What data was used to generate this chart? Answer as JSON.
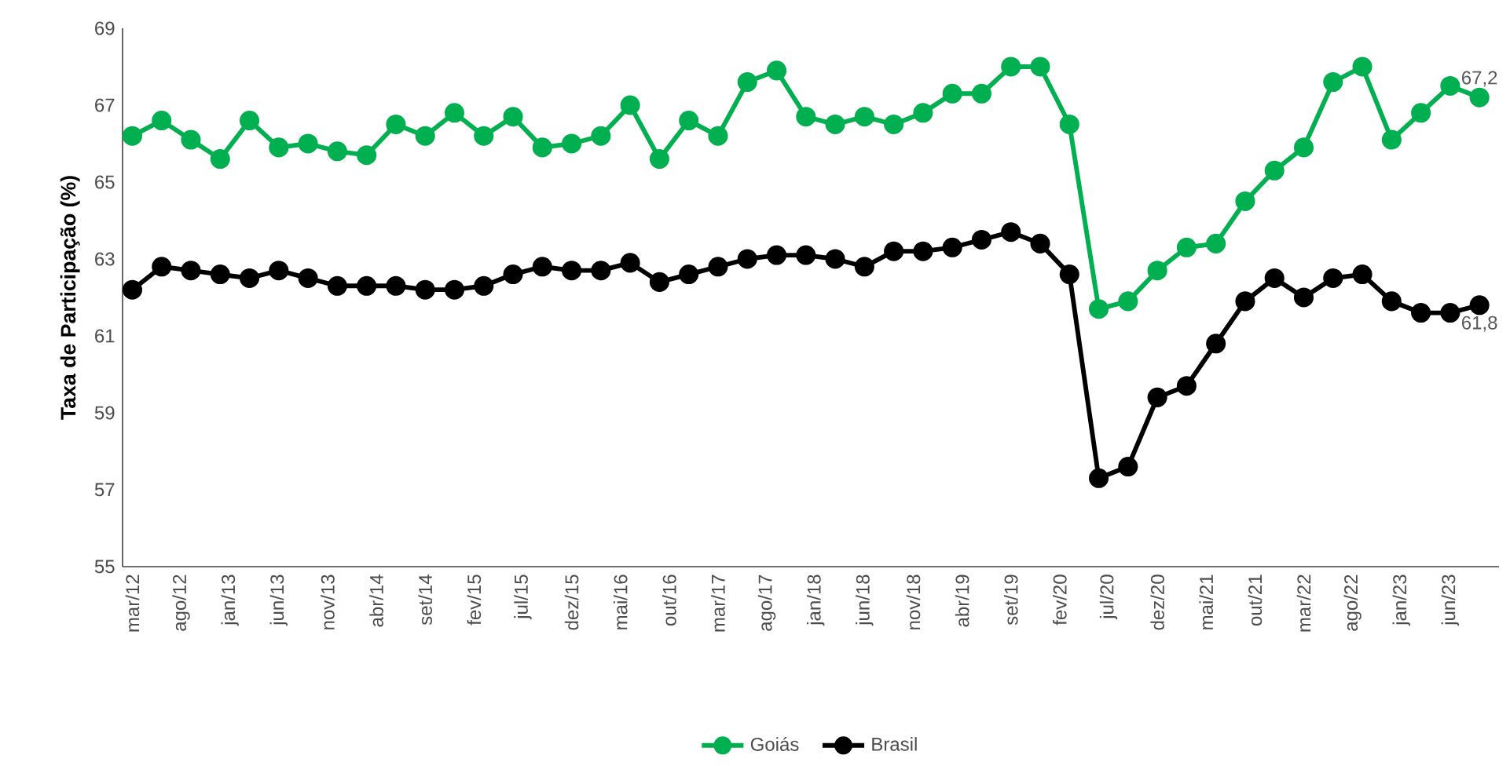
{
  "chart_data": {
    "type": "line",
    "ylabel": "Taxa de Participação (%)",
    "x": [
      "2012-03",
      "2012-06",
      "2012-09",
      "2012-12",
      "2013-03",
      "2013-06",
      "2013-09",
      "2013-12",
      "2014-03",
      "2014-06",
      "2014-09",
      "2014-12",
      "2015-03",
      "2015-06",
      "2015-09",
      "2015-12",
      "2016-03",
      "2016-06",
      "2016-09",
      "2016-12",
      "2017-03",
      "2017-06",
      "2017-09",
      "2017-12",
      "2018-03",
      "2018-06",
      "2018-09",
      "2018-12",
      "2019-03",
      "2019-06",
      "2019-09",
      "2019-12",
      "2020-03",
      "2020-06",
      "2020-09",
      "2020-12",
      "2021-03",
      "2021-06",
      "2021-09",
      "2021-12",
      "2022-03",
      "2022-06",
      "2022-09",
      "2022-12",
      "2023-03",
      "2023-06",
      "2023-09"
    ],
    "series": [
      {
        "name": "Goiás",
        "color": "#00b050",
        "values": [
          66.2,
          66.6,
          66.1,
          65.6,
          66.6,
          65.9,
          66.0,
          65.8,
          65.7,
          66.5,
          66.2,
          66.8,
          66.2,
          66.7,
          65.9,
          66.0,
          66.2,
          67.0,
          65.6,
          66.6,
          66.2,
          67.6,
          67.9,
          66.7,
          66.5,
          66.7,
          66.5,
          66.8,
          67.3,
          67.3,
          68.0,
          68.0,
          66.5,
          61.7,
          61.9,
          62.7,
          63.3,
          63.4,
          64.5,
          65.3,
          65.9,
          67.6,
          68.0,
          66.1,
          66.8,
          67.5,
          67.2
        ],
        "value_labels": [
          null,
          null,
          null,
          null,
          null,
          null,
          null,
          null,
          null,
          null,
          null,
          null,
          null,
          null,
          null,
          null,
          null,
          null,
          null,
          null,
          null,
          null,
          null,
          null,
          null,
          null,
          null,
          null,
          null,
          null,
          null,
          null,
          null,
          null,
          null,
          null,
          null,
          null,
          null,
          null,
          null,
          null,
          null,
          null,
          null,
          null,
          "67,2"
        ]
      },
      {
        "name": "Brasil",
        "color": "#000000",
        "values": [
          62.2,
          62.8,
          62.7,
          62.6,
          62.5,
          62.7,
          62.5,
          62.3,
          62.3,
          62.3,
          62.2,
          62.2,
          62.3,
          62.6,
          62.8,
          62.7,
          62.7,
          62.9,
          62.4,
          62.6,
          62.8,
          63.0,
          63.1,
          63.1,
          63.0,
          62.8,
          63.2,
          63.2,
          63.3,
          63.5,
          63.7,
          63.4,
          62.6,
          57.3,
          57.6,
          59.4,
          59.7,
          60.8,
          61.9,
          62.5,
          62.0,
          62.5,
          62.6,
          61.9,
          61.6,
          61.6,
          61.8
        ],
        "value_labels": [
          null,
          null,
          null,
          null,
          null,
          null,
          null,
          null,
          null,
          null,
          null,
          null,
          null,
          null,
          null,
          null,
          null,
          null,
          null,
          null,
          null,
          null,
          null,
          null,
          null,
          null,
          null,
          null,
          null,
          null,
          null,
          null,
          null,
          null,
          null,
          null,
          null,
          null,
          null,
          null,
          null,
          null,
          null,
          null,
          null,
          null,
          "61,8"
        ]
      }
    ],
    "xlim": [
      "2012-02",
      "2023-11"
    ],
    "xticks": [
      {
        "value": "2012-03",
        "label": "mar/12"
      },
      {
        "value": "2012-08",
        "label": "ago/12"
      },
      {
        "value": "2013-01",
        "label": "jan/13"
      },
      {
        "value": "2013-06",
        "label": "jun/13"
      },
      {
        "value": "2013-11",
        "label": "nov/13"
      },
      {
        "value": "2014-04",
        "label": "abr/14"
      },
      {
        "value": "2014-09",
        "label": "set/14"
      },
      {
        "value": "2015-02",
        "label": "fev/15"
      },
      {
        "value": "2015-07",
        "label": "jul/15"
      },
      {
        "value": "2015-12",
        "label": "dez/15"
      },
      {
        "value": "2016-05",
        "label": "mai/16"
      },
      {
        "value": "2016-10",
        "label": "out/16"
      },
      {
        "value": "2017-03",
        "label": "mar/17"
      },
      {
        "value": "2017-08",
        "label": "ago/17"
      },
      {
        "value": "2018-01",
        "label": "jan/18"
      },
      {
        "value": "2018-06",
        "label": "jun/18"
      },
      {
        "value": "2018-11",
        "label": "nov/18"
      },
      {
        "value": "2019-04",
        "label": "abr/19"
      },
      {
        "value": "2019-09",
        "label": "set/19"
      },
      {
        "value": "2020-02",
        "label": "fev/20"
      },
      {
        "value": "2020-07",
        "label": "jul/20"
      },
      {
        "value": "2020-12",
        "label": "dez/20"
      },
      {
        "value": "2021-05",
        "label": "mai/21"
      },
      {
        "value": "2021-10",
        "label": "out/21"
      },
      {
        "value": "2022-03",
        "label": "mar/22"
      },
      {
        "value": "2022-08",
        "label": "ago/22"
      },
      {
        "value": "2023-01",
        "label": "jan/23"
      },
      {
        "value": "2023-06",
        "label": "jun/23"
      }
    ],
    "ylim": [
      55,
      69
    ],
    "yticks": [
      55,
      57,
      59,
      61,
      63,
      65,
      67,
      69
    ],
    "grid": false,
    "legend": "bottom",
    "marker": "circle",
    "line_style": "solid"
  }
}
